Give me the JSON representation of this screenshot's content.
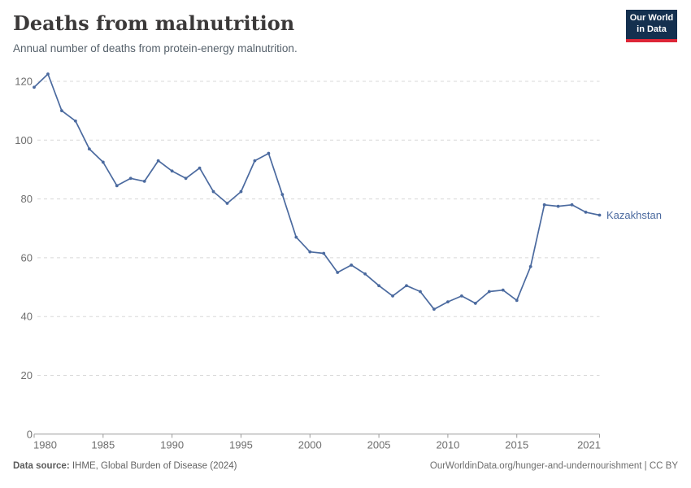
{
  "header": {
    "title": "Deaths from malnutrition",
    "subtitle": "Annual number of deaths from protein-energy malnutrition.",
    "logo": {
      "line1": "Our World",
      "line2": "in Data"
    }
  },
  "chart_data": {
    "type": "line",
    "title": "Deaths from malnutrition",
    "subtitle": "Annual number of deaths from protein-energy malnutrition.",
    "x": [
      1980,
      1981,
      1982,
      1983,
      1984,
      1985,
      1986,
      1987,
      1988,
      1989,
      1990,
      1991,
      1992,
      1993,
      1994,
      1995,
      1996,
      1997,
      1998,
      1999,
      2000,
      2001,
      2002,
      2003,
      2004,
      2005,
      2006,
      2007,
      2008,
      2009,
      2010,
      2011,
      2012,
      2013,
      2014,
      2015,
      2016,
      2017,
      2018,
      2019,
      2020,
      2021
    ],
    "series": [
      {
        "name": "Kazakhstan",
        "color": "#4B6A9F",
        "values": [
          118,
          122.5,
          110,
          106.5,
          97,
          92.5,
          84.5,
          87,
          86,
          93,
          89.5,
          87,
          90.5,
          82.5,
          78.5,
          82.5,
          93,
          95.5,
          81.5,
          67,
          62,
          61.5,
          55,
          57.5,
          54.5,
          50.5,
          47,
          50.5,
          48.5,
          42.5,
          45,
          47,
          44.5,
          48.5,
          49,
          45.5,
          57,
          78,
          77.5,
          78,
          75.5,
          74.5
        ]
      }
    ],
    "x_ticks": [
      1980,
      1985,
      1990,
      1995,
      2000,
      2005,
      2010,
      2015,
      2021
    ],
    "y_ticks": [
      0,
      20,
      40,
      60,
      80,
      100,
      120
    ],
    "xlim": [
      1980,
      2021
    ],
    "ylim": [
      0,
      125
    ],
    "grid": "horizontal-dashed",
    "legend": "end-of-line-label",
    "end_label": "Kazakhstan"
  },
  "footer": {
    "source_label": "Data source:",
    "source_text": " IHME, Global Burden of Disease (2024)",
    "link_text": "OurWorldinData.org/hunger-and-undernourishment | CC BY"
  },
  "colors": {
    "line": "#4B6A9F",
    "grid": "#d8d8d8",
    "axis": "#9a9a9a",
    "tick_label": "#6e6e6e",
    "title": "#3b3939",
    "subtitle": "#56616b",
    "footer": "#636363",
    "logo_bg": "#14304f",
    "logo_accent": "#dd2637"
  }
}
